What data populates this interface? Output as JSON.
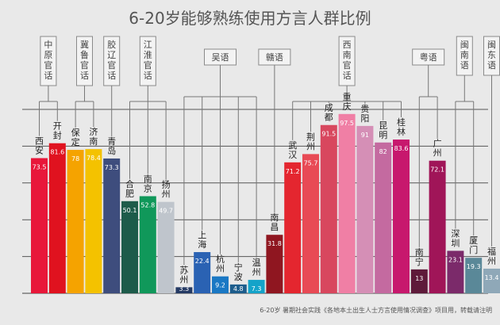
{
  "chart_data": {
    "type": "bar",
    "title": "6-20岁能够熟练使用方言人群比例",
    "ylim": [
      0,
      100
    ],
    "grid": true,
    "categories": [
      "西安",
      "开封",
      "保定",
      "济南",
      "青岛",
      "合肥",
      "南京",
      "扬州",
      "苏州",
      "上海",
      "杭州",
      "宁波",
      "温州",
      "南昌",
      "武汉",
      "荆州",
      "成都",
      "重庆",
      "贵阳",
      "昆明",
      "桂林",
      "南宁",
      "广州",
      "深圳",
      "厦门",
      "福州"
    ],
    "values": [
      73.5,
      81.6,
      78,
      78.4,
      73.3,
      50.1,
      52.8,
      49.7,
      3.3,
      22.4,
      9.2,
      4.8,
      7.3,
      31.8,
      71.2,
      75.7,
      91.5,
      97.5,
      91,
      82,
      83.6,
      13,
      72.1,
      23.1,
      19.3,
      13.4
    ],
    "value_labels": [
      "73.5",
      "81.6",
      "78",
      "78.4",
      "73.3",
      "50.1",
      "52.8",
      "49.7",
      "3.3",
      "22.4",
      "9.2",
      "4.8",
      "7.3",
      "31.8",
      "71.2",
      "75.7",
      "91.5",
      "97.5",
      "91",
      "82",
      "83.6",
      "13",
      "72.1",
      "23.1",
      "19.3",
      "13.4"
    ],
    "colors": [
      "#e8173a",
      "#e0121f",
      "#f5a300",
      "#f4c200",
      "#3e4d7d",
      "#1d5b4a",
      "#10985a",
      "#bfc5cc",
      "#253a64",
      "#2a62b3",
      "#1a78c4",
      "#1d5d8c",
      "#14a3c9",
      "#8f1620",
      "#e4262f",
      "#e84a55",
      "#d8475e",
      "#f07fa5",
      "#d58fb6",
      "#c46aa0",
      "#c7186d",
      "#5e1a3a",
      "#a01558",
      "#7b2a6a",
      "#5a8898",
      "#8fa8b8"
    ],
    "groups": [
      {
        "name": "中原官话",
        "members": [
          0,
          1
        ]
      },
      {
        "name": "冀鲁官话",
        "members": [
          2,
          3
        ]
      },
      {
        "name": "胶辽官话",
        "members": [
          4
        ]
      },
      {
        "name": "江淮官话",
        "members": [
          5,
          6,
          7
        ]
      },
      {
        "name": "吴语",
        "members": [
          8,
          9,
          10,
          11,
          12
        ]
      },
      {
        "name": "赣语",
        "members": [
          13
        ]
      },
      {
        "name": "西南官话",
        "members": [
          14,
          15,
          16,
          17,
          18,
          19,
          20
        ]
      },
      {
        "name": "粤语",
        "members": [
          21,
          22
        ]
      },
      {
        "name": "闽南语",
        "members": [
          23,
          24
        ]
      },
      {
        "name": "闽东语",
        "members": [
          25
        ]
      }
    ]
  },
  "footer": "6-20岁 暑期社会实践《各地本土出生人士方言使用情况调查》项目用，转载请注明"
}
